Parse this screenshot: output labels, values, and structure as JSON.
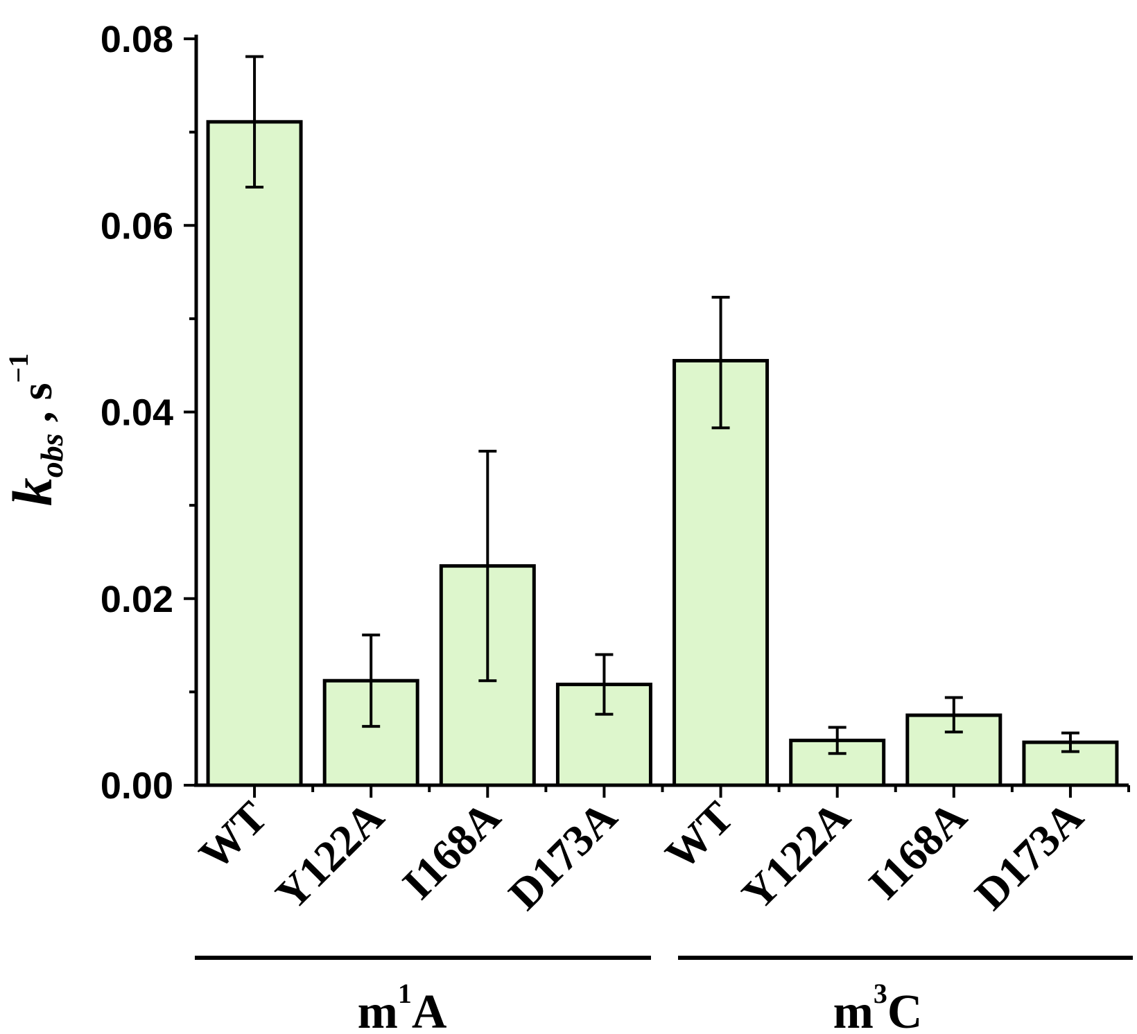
{
  "chart_data": {
    "type": "bar",
    "categories": [
      "WT",
      "Y122A",
      "I168A",
      "D173A",
      "WT",
      "Y122A",
      "I168A",
      "D173A"
    ],
    "values": [
      0.0711,
      0.0112,
      0.0235,
      0.0108,
      0.0455,
      0.0048,
      0.0075,
      0.0046
    ],
    "error_low": [
      0.0641,
      0.0063,
      0.0112,
      0.0076,
      0.0383,
      0.0034,
      0.0057,
      0.0036
    ],
    "error_high": [
      0.0781,
      0.0161,
      0.0358,
      0.014,
      0.0523,
      0.0062,
      0.0094,
      0.0056
    ],
    "bar_color": "#ddf6cc",
    "edge_color": "#000000",
    "ylim": [
      0,
      0.08
    ],
    "yticks": [
      "0.00",
      "0.02",
      "0.04",
      "0.06",
      "0.08"
    ],
    "ylabel": {
      "main": "k",
      "sub": "obs",
      "rest": " , s",
      "sup": "−1"
    },
    "groups": [
      {
        "base": "m",
        "sup": "1",
        "rest": "A"
      },
      {
        "base": "m",
        "sup": "3",
        "rest": "C"
      }
    ]
  }
}
